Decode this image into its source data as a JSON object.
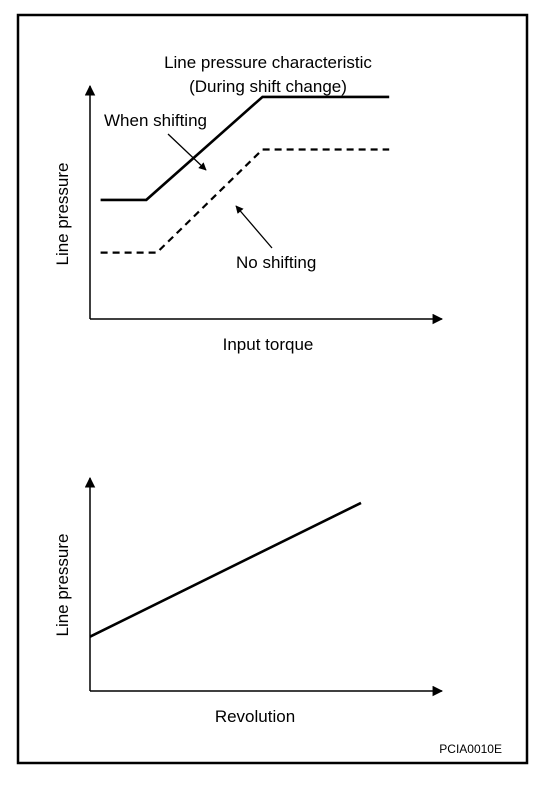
{
  "figure_code": "PCIA0010E",
  "chart_data": [
    {
      "type": "line",
      "title": "Line pressure characteristic",
      "subtitle": "(During shift change)",
      "xlabel": "Input torque",
      "ylabel": "Line pressure",
      "xlim": [
        0,
        10
      ],
      "ylim": [
        0,
        10
      ],
      "grid": false,
      "legend": "none",
      "series": [
        {
          "name": "When shifting",
          "style": "solid",
          "x": [
            0.3,
            1.6,
            4.9,
            8.5
          ],
          "y": [
            5.2,
            5.2,
            9.7,
            9.7
          ]
        },
        {
          "name": "No shifting",
          "style": "dashed",
          "x": [
            0.3,
            1.9,
            4.9,
            8.5
          ],
          "y": [
            2.9,
            2.9,
            7.4,
            7.4
          ]
        }
      ],
      "colors": {
        "line": "#000000",
        "axis": "#000000"
      }
    },
    {
      "type": "line",
      "title": "",
      "xlabel": "Revolution",
      "ylabel": "Line pressure",
      "xlim": [
        0,
        10
      ],
      "ylim": [
        0,
        10
      ],
      "grid": false,
      "legend": "none",
      "series": [
        {
          "name": "",
          "style": "solid",
          "x": [
            0,
            7.7
          ],
          "y": [
            2.6,
            9.0
          ]
        }
      ],
      "colors": {
        "line": "#000000",
        "axis": "#000000"
      }
    }
  ]
}
